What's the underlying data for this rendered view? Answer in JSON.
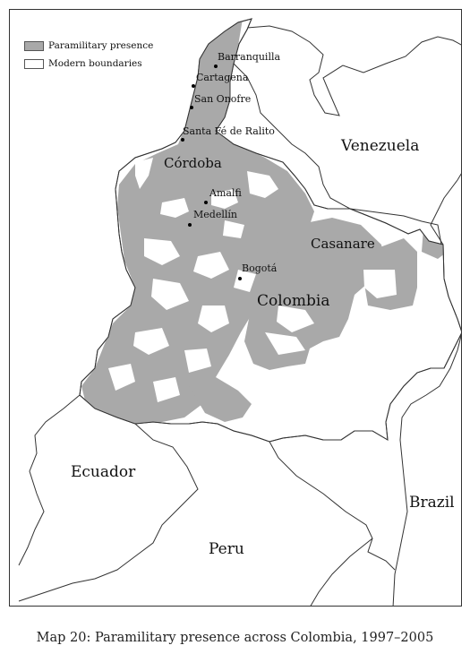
{
  "legend": {
    "paramilitary_label": "Paramilitary presence",
    "boundaries_label": "Modern boundaries",
    "paramilitary_color": "#a9a9a9",
    "boundaries_color": "#ffffff"
  },
  "countries": {
    "venezuela": "Venezuela",
    "colombia": "Colombia",
    "ecuador": "Ecuador",
    "peru": "Peru",
    "brazil": "Brazil"
  },
  "regions": {
    "cordoba": "Córdoba",
    "casanare": "Casanare"
  },
  "cities": {
    "barranquilla": "Barranquilla",
    "cartagena": "Cartagena",
    "san_onofre": "San Onofre",
    "santa_fe_de_ralito": "Santa Fé de Ralito",
    "amalfi": "Amalfi",
    "medellin": "Medellín",
    "bogota": "Bogotá"
  },
  "caption": "Map 20: Paramilitary presence across Colombia, 1997–2005",
  "colors": {
    "land": "#ffffff",
    "outline": "#333333",
    "presence": "#a9a9a9"
  }
}
